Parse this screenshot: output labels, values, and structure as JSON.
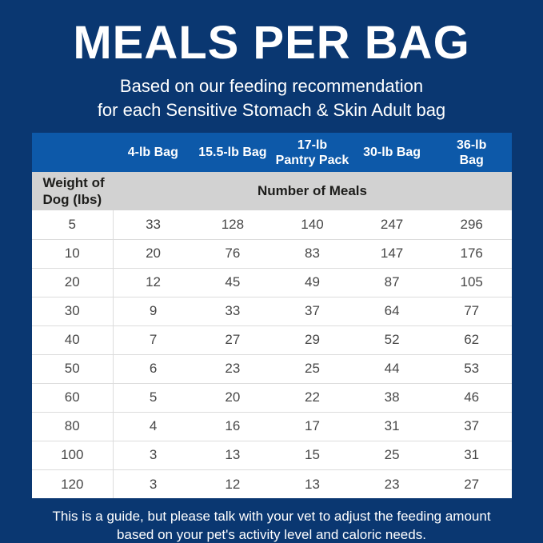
{
  "colors": {
    "bg_navy": "#0a3771",
    "header_blue": "#0d59a9",
    "subhead_gray": "#d2d2d2",
    "dark_text": "#1d1d1b",
    "cell_text": "#474747",
    "row_line": "#dcdcdc"
  },
  "header": {
    "title": "MEALS PER BAG",
    "subtitle_line1": "Based on our feeding recommendation",
    "subtitle_line2": "for each Sensitive Stomach & Skin Adult bag"
  },
  "table": {
    "bag_columns": [
      "4-lb Bag",
      "15.5-lb Bag",
      "17-lb\nPantry Pack",
      "30-lb Bag",
      "36-lb\nBag"
    ],
    "row_header_label": "Weight of Dog (lbs)",
    "meals_header_label": "Number of Meals"
  },
  "chart_data": {
    "type": "table",
    "title": "MEALS PER BAG",
    "subtitle": "Based on our feeding recommendation for each Sensitive Stomach & Skin Adult bag",
    "columns": [
      "Weight of Dog (lbs)",
      "4-lb Bag",
      "15.5-lb Bag",
      "17-lb Pantry Pack",
      "30-lb Bag",
      "36-lb Bag"
    ],
    "value_group_header": "Number of Meals",
    "rows": [
      [
        5,
        33,
        128,
        140,
        247,
        296
      ],
      [
        10,
        20,
        76,
        83,
        147,
        176
      ],
      [
        20,
        12,
        45,
        49,
        87,
        105
      ],
      [
        30,
        9,
        33,
        37,
        64,
        77
      ],
      [
        40,
        7,
        27,
        29,
        52,
        62
      ],
      [
        50,
        6,
        23,
        25,
        44,
        53
      ],
      [
        60,
        5,
        20,
        22,
        38,
        46
      ],
      [
        80,
        4,
        16,
        17,
        31,
        37
      ],
      [
        100,
        3,
        13,
        15,
        25,
        31
      ],
      [
        120,
        3,
        12,
        13,
        23,
        27
      ]
    ],
    "note": "This is a guide, but please talk with your vet to adjust the feeding amount based on your pet's activity level and caloric needs."
  },
  "footer": {
    "note_line1": "This is a guide, but please talk with your vet to adjust the feeding amount",
    "note_line2": "based on your pet's activity level and caloric needs."
  }
}
